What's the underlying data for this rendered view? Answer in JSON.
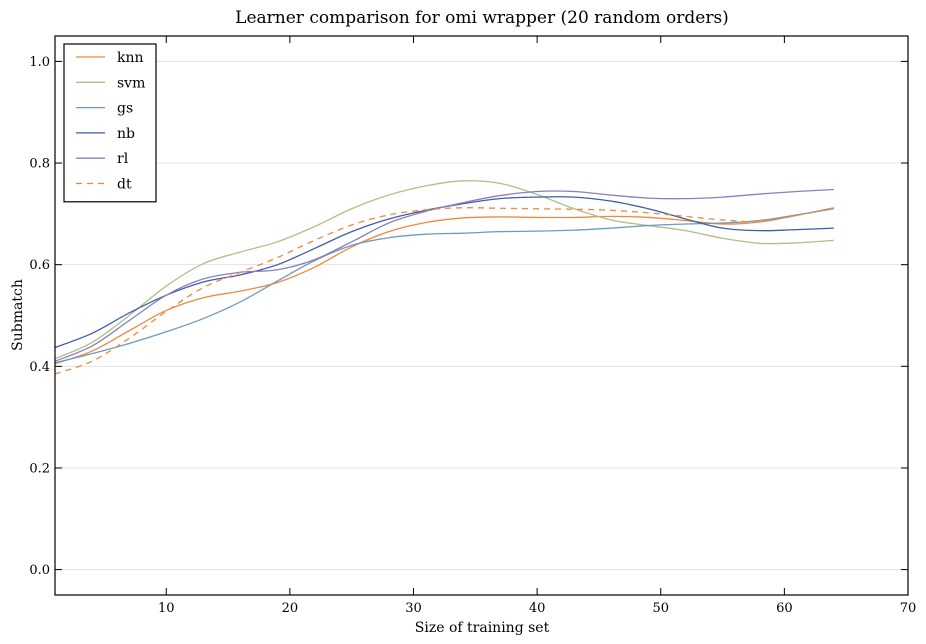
{
  "chart_data": {
    "type": "line",
    "title": "Learner comparison for omi wrapper (20 random orders)",
    "xlabel": "Size of training set",
    "ylabel": "Submatch",
    "xlim": [
      1,
      70
    ],
    "ylim": [
      -0.05,
      1.05
    ],
    "xticks": [
      10,
      20,
      30,
      40,
      50,
      60,
      70
    ],
    "yticks": [
      0.0,
      0.2,
      0.4,
      0.6,
      0.8,
      1.0
    ],
    "ytick_labels": [
      "0.0",
      "0.2",
      "0.4",
      "0.6",
      "0.8",
      "1.0"
    ],
    "grid": "horizontal",
    "legend_position": "top-left",
    "series": [
      {
        "name": "knn",
        "color": "#f0883e",
        "dash": "solid",
        "x": [
          1,
          4,
          7,
          10,
          13,
          16,
          19,
          22,
          25,
          28,
          31,
          34,
          37,
          40,
          43,
          46,
          49,
          52,
          55,
          58,
          61,
          64
        ],
        "y": [
          0.405,
          0.43,
          0.47,
          0.51,
          0.535,
          0.548,
          0.565,
          0.595,
          0.635,
          0.665,
          0.683,
          0.692,
          0.694,
          0.693,
          0.693,
          0.695,
          0.693,
          0.687,
          0.68,
          0.684,
          0.697,
          0.712
        ]
      },
      {
        "name": "svm",
        "color": "#b2bf84",
        "dash": "solid",
        "x": [
          1,
          4,
          7,
          10,
          13,
          16,
          19,
          22,
          25,
          28,
          31,
          34,
          37,
          40,
          43,
          46,
          49,
          52,
          55,
          58,
          61,
          64
        ],
        "y": [
          0.415,
          0.447,
          0.5,
          0.558,
          0.602,
          0.625,
          0.645,
          0.675,
          0.71,
          0.737,
          0.755,
          0.765,
          0.76,
          0.738,
          0.71,
          0.688,
          0.677,
          0.667,
          0.652,
          0.642,
          0.643,
          0.648
        ]
      },
      {
        "name": "gs",
        "color": "#6a9cc3",
        "dash": "solid",
        "x": [
          1,
          4,
          7,
          10,
          13,
          16,
          19,
          22,
          25,
          28,
          31,
          34,
          37,
          40,
          43,
          46,
          49,
          52,
          55,
          58,
          61,
          64
        ],
        "y": [
          0.407,
          0.425,
          0.445,
          0.468,
          0.494,
          0.527,
          0.568,
          0.608,
          0.638,
          0.653,
          0.66,
          0.662,
          0.665,
          0.666,
          0.668,
          0.672,
          0.677,
          0.68,
          0.682,
          0.687,
          0.698,
          0.71
        ]
      },
      {
        "name": "nb",
        "color": "#3f5ea7",
        "dash": "solid",
        "x": [
          1,
          4,
          7,
          10,
          13,
          16,
          19,
          22,
          25,
          28,
          31,
          34,
          37,
          40,
          43,
          46,
          49,
          52,
          55,
          58,
          61,
          64
        ],
        "y": [
          0.437,
          0.465,
          0.505,
          0.54,
          0.566,
          0.58,
          0.6,
          0.632,
          0.665,
          0.69,
          0.707,
          0.72,
          0.73,
          0.733,
          0.733,
          0.725,
          0.71,
          0.69,
          0.672,
          0.667,
          0.669,
          0.672
        ]
      },
      {
        "name": "rl",
        "color": "#8a7fc0",
        "dash": "solid",
        "x": [
          1,
          4,
          7,
          10,
          13,
          16,
          19,
          22,
          25,
          28,
          31,
          34,
          37,
          40,
          43,
          46,
          49,
          52,
          55,
          58,
          61,
          64
        ],
        "y": [
          0.41,
          0.44,
          0.49,
          0.54,
          0.572,
          0.585,
          0.59,
          0.61,
          0.645,
          0.682,
          0.705,
          0.722,
          0.736,
          0.744,
          0.744,
          0.737,
          0.731,
          0.73,
          0.733,
          0.739,
          0.744,
          0.748
        ]
      },
      {
        "name": "dt",
        "color": "#f0883e",
        "dash": "dashed",
        "x": [
          1,
          4,
          7,
          10,
          13,
          16,
          19,
          22,
          25,
          28,
          31,
          34,
          37,
          40,
          43,
          46,
          49,
          52,
          55,
          58,
          61,
          64
        ],
        "y": [
          0.385,
          0.41,
          0.455,
          0.508,
          0.555,
          0.585,
          0.614,
          0.648,
          0.678,
          0.698,
          0.708,
          0.712,
          0.711,
          0.71,
          0.709,
          0.707,
          0.702,
          0.695,
          0.688,
          0.685,
          0.697,
          0.711
        ]
      }
    ]
  }
}
